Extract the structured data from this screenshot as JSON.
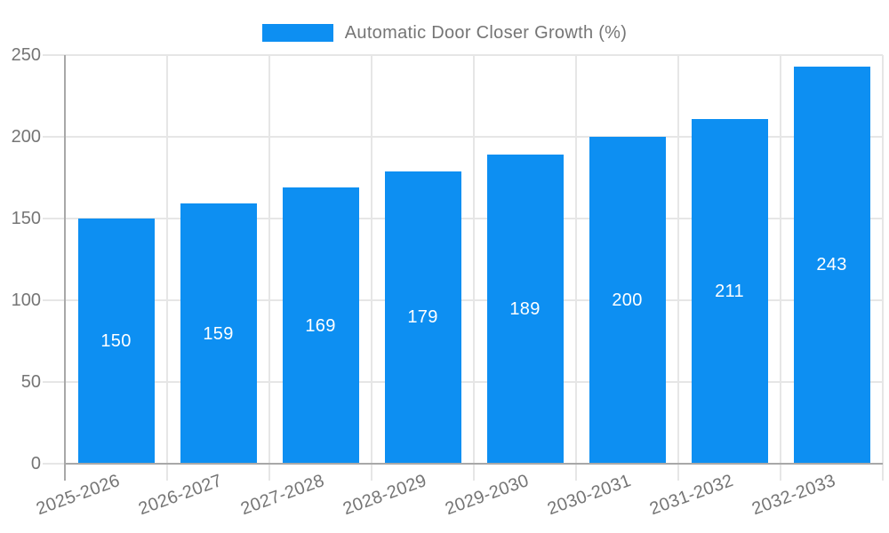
{
  "chart_data": {
    "type": "bar",
    "title": "Automatic Door Closer Growth (%)",
    "categories": [
      "2025-2026",
      "2026-2027",
      "2027-2028",
      "2028-2029",
      "2029-2030",
      "2030-2031",
      "2031-2032",
      "2032-2033"
    ],
    "values": [
      150,
      159,
      169,
      179,
      189,
      200,
      211,
      243
    ],
    "xlabel": "",
    "ylabel": "",
    "ylim": [
      0,
      250
    ],
    "yticks": [
      0,
      50,
      100,
      150,
      200,
      250
    ],
    "grid": true,
    "legend_position": "top",
    "bar_value_labels_visible": true,
    "x_label_rotation_deg": -20,
    "colors": {
      "bar": "#0d8ff2",
      "grid": "#e6e6e6",
      "axis": "#a8a8a8",
      "text": "#757575",
      "value_label": "#ffffff",
      "background": "#ffffff"
    }
  }
}
